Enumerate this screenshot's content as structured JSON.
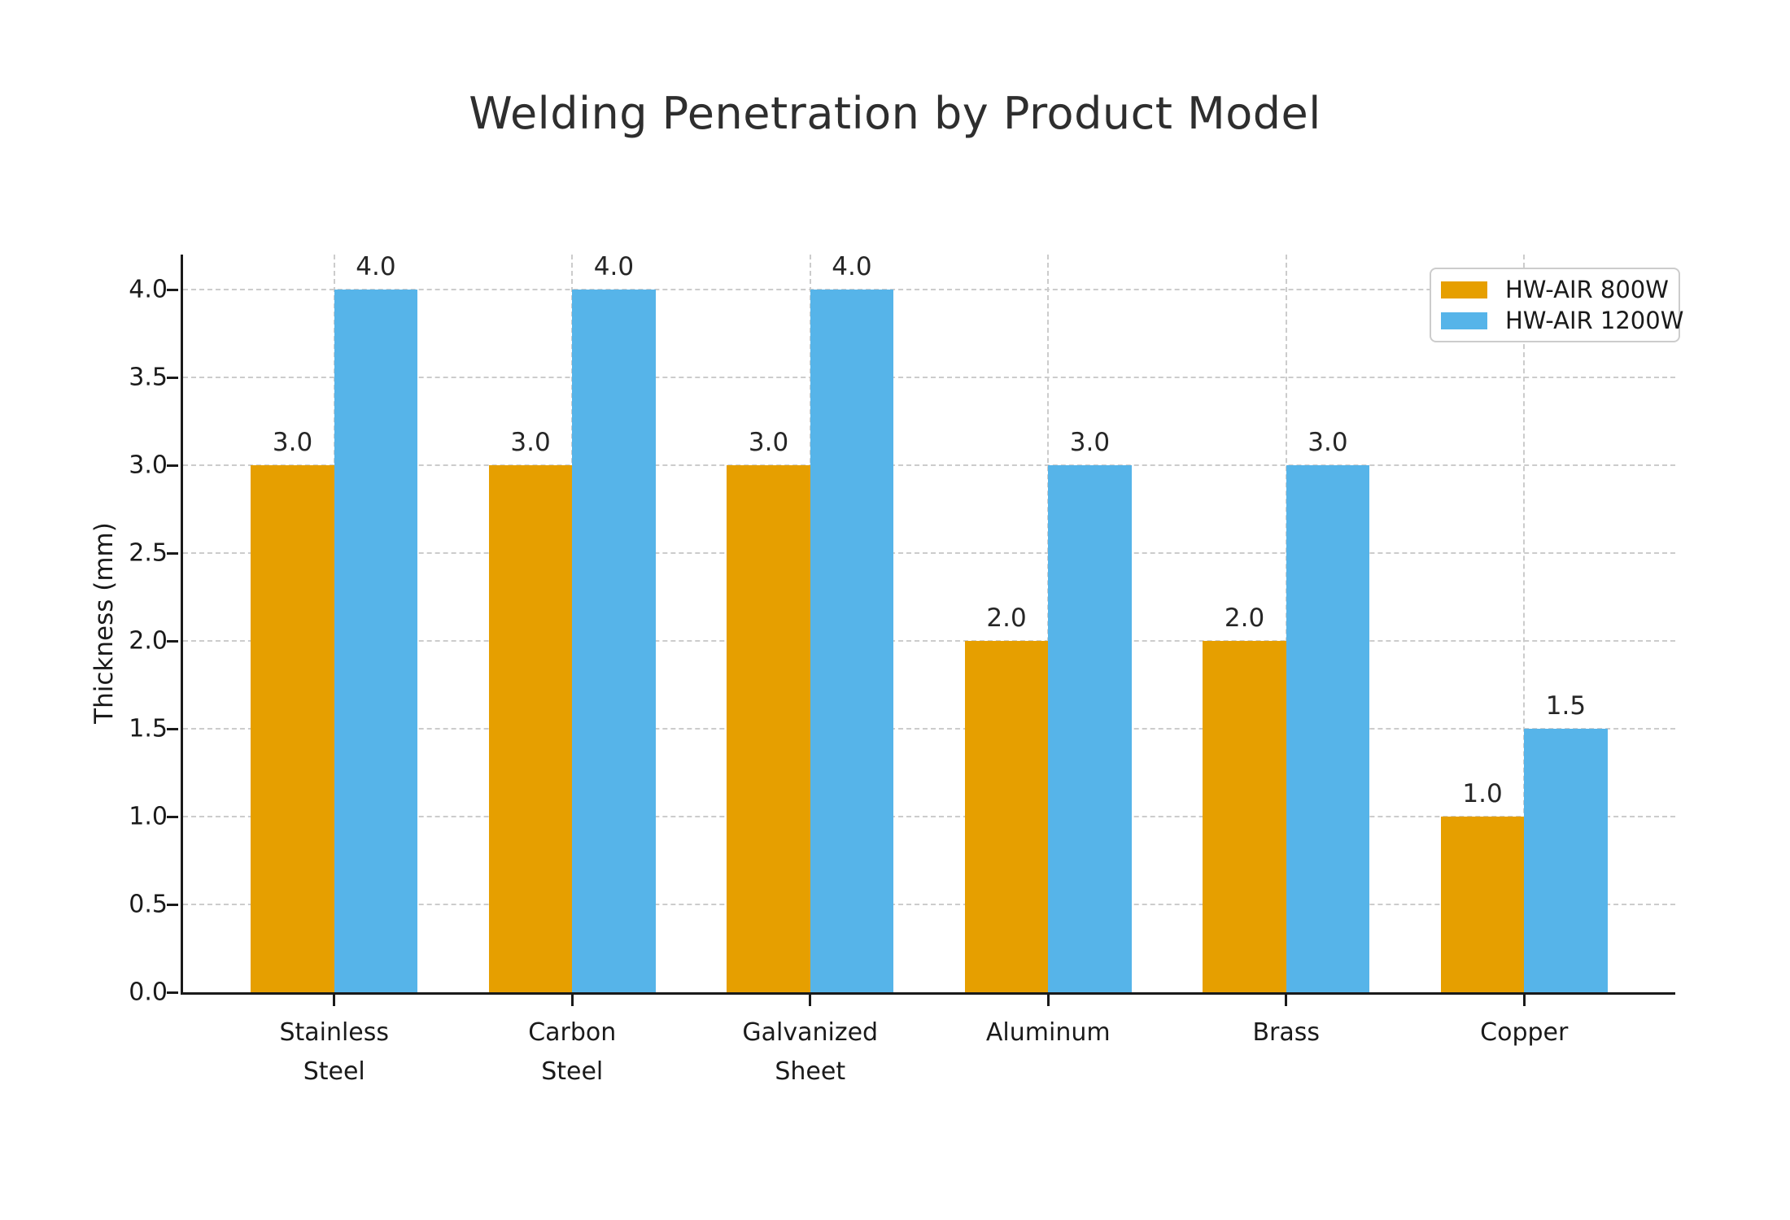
{
  "chart_data": {
    "type": "bar",
    "title": "Welding Penetration by Product Model",
    "ylabel": "Thickness (mm)",
    "categories": [
      "Stainless\nSteel",
      "Carbon\nSteel",
      "Galvanized\nSheet",
      "Aluminum",
      "Brass",
      "Copper"
    ],
    "series": [
      {
        "name": "HW-AIR 800W",
        "color": "#E69F00",
        "values": [
          3.0,
          3.0,
          3.0,
          2.0,
          2.0,
          1.0
        ]
      },
      {
        "name": "HW-AIR 1200W",
        "color": "#56B4E9",
        "values": [
          4.0,
          4.0,
          4.0,
          3.0,
          3.0,
          1.5
        ]
      }
    ],
    "bar_value_labels": [
      [
        "3.0",
        "3.0",
        "3.0",
        "2.0",
        "2.0",
        "1.0"
      ],
      [
        "4.0",
        "4.0",
        "4.0",
        "3.0",
        "3.0",
        "1.5"
      ]
    ],
    "yticks": [
      0.0,
      0.5,
      1.0,
      1.5,
      2.0,
      2.5,
      3.0,
      3.5,
      4.0
    ],
    "ytick_labels": [
      "0.0",
      "0.5",
      "1.0",
      "1.5",
      "2.0",
      "2.5",
      "3.0",
      "3.5",
      "4.0"
    ],
    "ylim": [
      0,
      4.2
    ],
    "grid": {
      "horizontal": true,
      "vertical": true,
      "style": "dashed",
      "color": "#cccccc"
    },
    "legend": {
      "position": "upper right",
      "entries": [
        "HW-AIR 800W",
        "HW-AIR 1200W"
      ]
    }
  },
  "colors": {
    "background": "#ffffff",
    "axis": "#1a1a1a",
    "title_text": "#2e2e2e",
    "tick_text": "#1a1a1a",
    "grid": "#cccccc",
    "legend_border": "#cccccc",
    "series_800w": "#E69F00",
    "series_1200w": "#56B4E9"
  }
}
